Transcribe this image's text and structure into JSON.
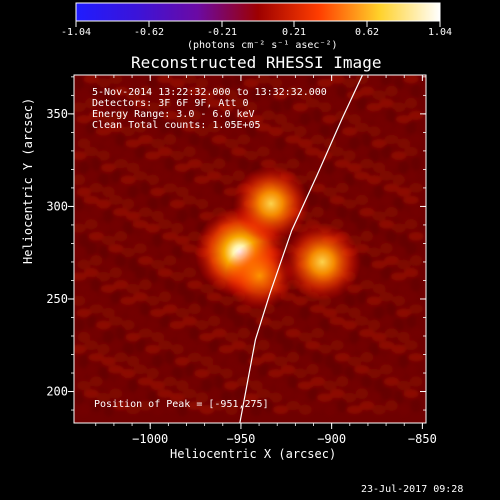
{
  "colorbar": {
    "ticks": [
      "-1.04",
      "-0.62",
      "-0.21",
      "0.21",
      "0.62",
      "1.04"
    ],
    "unit_label": "(photons cm⁻² s⁻¹ asec⁻²)",
    "colors": [
      "#1f1cff",
      "#3b14d9",
      "#6b0aa4",
      "#9d0000",
      "#ff3d00",
      "#ffd12a",
      "#ffffff"
    ]
  },
  "chart_data": {
    "type": "heatmap",
    "title": "Reconstructed RHESSI Image",
    "xlabel": "Heliocentric X (arcsec)",
    "ylabel": "Heliocentric Y (arcsec)",
    "xlim": [
      -1042,
      -848
    ],
    "ylim": [
      183,
      371
    ],
    "x_ticks": [
      {
        "value": -1000,
        "label": "−1000"
      },
      {
        "value": -950,
        "label": "−950"
      },
      {
        "value": -900,
        "label": "−900"
      },
      {
        "value": -850,
        "label": "−850"
      }
    ],
    "y_ticks": [
      {
        "value": 350,
        "label": "350"
      },
      {
        "value": 300,
        "label": "300"
      },
      {
        "value": 250,
        "label": "250"
      },
      {
        "value": 200,
        "label": "200"
      }
    ],
    "info_lines": [
      "5-Nov-2014 13:22:32.000 to 13:32:32.000",
      "Detectors: 3F 6F 9F, Att 0",
      "Energy Range: 3.0 - 6.0 keV",
      "Clean    Total counts: 1.05E+05"
    ],
    "peak_text": "Position of Peak = [-951,275]",
    "sources": [
      {
        "x": -950.6,
        "y": 275.4,
        "intensity": 1.04
      },
      {
        "x": -933.4,
        "y": 301.5,
        "intensity": 0.78
      },
      {
        "x": -905.2,
        "y": 270.0,
        "intensity": 0.8
      },
      {
        "x": -939.7,
        "y": 262.5,
        "intensity": 0.62
      }
    ],
    "limb_curve": {
      "color": "#ffffff",
      "points": [
        [
          -950.6,
          183.0
        ],
        [
          -942.0,
          228.0
        ],
        [
          -934.0,
          253.0
        ],
        [
          -922.0,
          287.0
        ],
        [
          -908.0,
          317.0
        ],
        [
          -894.0,
          348.0
        ],
        [
          -883.0,
          371.0
        ]
      ]
    }
  },
  "footer": {
    "date": "23-Jul-2017 09:28"
  }
}
